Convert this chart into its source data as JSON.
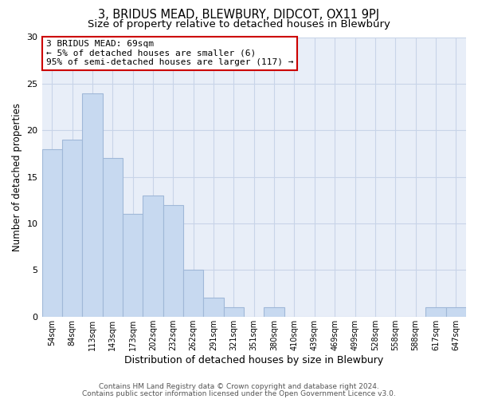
{
  "title": "3, BRIDUS MEAD, BLEWBURY, DIDCOT, OX11 9PJ",
  "subtitle": "Size of property relative to detached houses in Blewbury",
  "xlabel": "Distribution of detached houses by size in Blewbury",
  "ylabel": "Number of detached properties",
  "bin_labels": [
    "54sqm",
    "84sqm",
    "113sqm",
    "143sqm",
    "173sqm",
    "202sqm",
    "232sqm",
    "262sqm",
    "291sqm",
    "321sqm",
    "351sqm",
    "380sqm",
    "410sqm",
    "439sqm",
    "469sqm",
    "499sqm",
    "528sqm",
    "558sqm",
    "588sqm",
    "617sqm",
    "647sqm"
  ],
  "bar_values": [
    18,
    19,
    24,
    17,
    11,
    13,
    12,
    5,
    2,
    1,
    0,
    1,
    0,
    0,
    0,
    0,
    0,
    0,
    0,
    1,
    1
  ],
  "bar_color": "#c7d9f0",
  "bar_edge_color": "#a0b8d8",
  "annotation_line1": "3 BRIDUS MEAD: 69sqm",
  "annotation_line2": "← 5% of detached houses are smaller (6)",
  "annotation_line3": "95% of semi-detached houses are larger (117) →",
  "annotation_box_color": "#ffffff",
  "annotation_box_edge_color": "#cc0000",
  "ylim": [
    0,
    30
  ],
  "yticks": [
    0,
    5,
    10,
    15,
    20,
    25,
    30
  ],
  "grid_color": "#c8d4e8",
  "bg_color": "#e8eef8",
  "footer1": "Contains HM Land Registry data © Crown copyright and database right 2024.",
  "footer2": "Contains public sector information licensed under the Open Government Licence v3.0.",
  "title_fontsize": 10.5,
  "subtitle_fontsize": 9.5,
  "footer_fontsize": 6.5
}
